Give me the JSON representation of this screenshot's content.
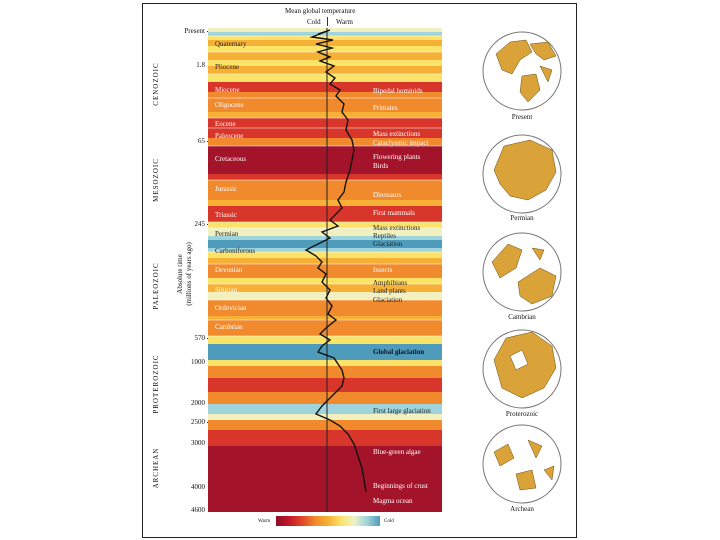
{
  "header": {
    "title": "Mean global temperature",
    "cold": "Cold",
    "warm": "Warm"
  },
  "axis": {
    "label_line1": "Absolute time",
    "label_line2": "(millions of years ago)"
  },
  "eras": [
    "CENOZOIC",
    "MESOZOIC",
    "PALEOZOIC",
    "PROTEROZOIC",
    "ARCHEAN"
  ],
  "ticks": [
    "Present",
    "1.8",
    "65",
    "245",
    "570",
    "1000",
    "2000",
    "2500",
    "3000",
    "4000",
    "4600"
  ],
  "periods": [
    "Quaternary",
    "Pliocene",
    "Miocene",
    "Oligocene",
    "Eocene",
    "Paleocene",
    "Cretaceous",
    "Jurassic",
    "Triassic",
    "Permian",
    "Carboniferous",
    "Devonian",
    "Silurian",
    "Ordovician",
    "Cambrian"
  ],
  "events": [
    "Bipedal hominids",
    "Primates",
    "Mass extinctions",
    "Cataclysmic impact",
    "Flowering plants",
    "Birds",
    "Dinosaurs",
    "First mammals",
    "Mass extinctions",
    "Reptiles",
    "Glaciation",
    "Insects",
    "Amphibians",
    "Land plants",
    "Glaciation",
    "Global glaciation",
    "First large glaciation",
    "Blue-green algae",
    "Beginnings of crust",
    "Magma ocean"
  ],
  "legend": {
    "warm": "Warm",
    "cold": "Cold"
  },
  "globes": [
    "Present",
    "Permian",
    "Cambrian",
    "Proterozoic",
    "Archean"
  ],
  "colors": {
    "hot": "#a3132a",
    "red": "#d8352b",
    "orange": "#f08a2c",
    "amber": "#f6b035",
    "yellow": "#fbe36a",
    "pale": "#f3f0c0",
    "cyan": "#9fd4dc",
    "blue": "#4e9bbb",
    "land": "#d9a33a",
    "ocean": "#ffffff"
  }
}
